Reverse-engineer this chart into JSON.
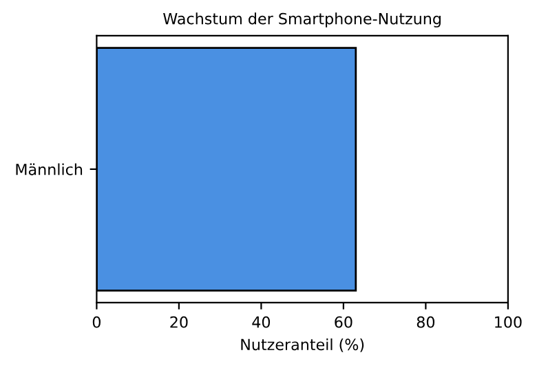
{
  "chart_data": {
    "type": "bar",
    "orientation": "horizontal",
    "title": "Wachstum der Smartphone-Nutzung",
    "xlabel": "Nutzeranteil (%)",
    "categories": [
      "Männlich"
    ],
    "values": [
      63
    ],
    "color": "#4a90e2",
    "xlim": [
      0,
      100
    ],
    "xticks": [
      0,
      20,
      40,
      60,
      80,
      100
    ],
    "grid": false,
    "legend": false
  }
}
